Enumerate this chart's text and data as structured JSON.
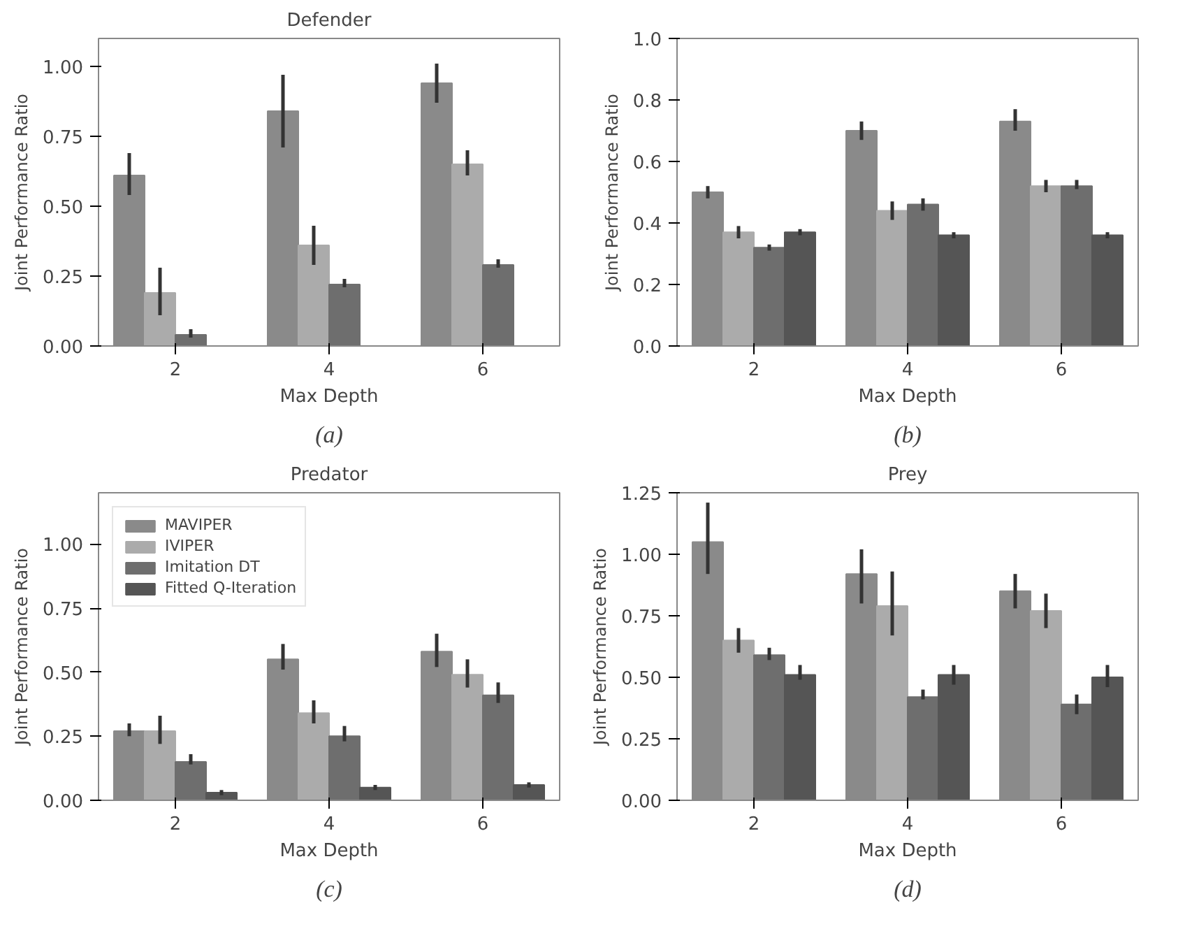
{
  "chart_data": [
    {
      "type": "bar",
      "title": "Defender",
      "xlabel": "Max Depth",
      "ylabel": "Joint Performance Ratio",
      "categories": [
        "2",
        "4",
        "6"
      ],
      "ylim": [
        0,
        1.1
      ],
      "yticks": [
        {
          "value": 0,
          "label": "0.00"
        },
        {
          "value": 0.25,
          "label": "0.25"
        },
        {
          "value": 0.5,
          "label": "0.50"
        },
        {
          "value": 0.75,
          "label": "0.75"
        },
        {
          "value": 1,
          "label": "1.00"
        }
      ],
      "grid": false,
      "legend": false,
      "annotations": [
        "(a)"
      ],
      "series": [
        {
          "color": "#8a8a8a",
          "values": [
            0.61,
            0.84,
            0.94
          ],
          "errors": [
            [
              0.54,
              0.69
            ],
            [
              0.71,
              0.97
            ],
            [
              0.87,
              1.01
            ]
          ]
        },
        {
          "color": "#ababab",
          "values": [
            0.19,
            0.36,
            0.65
          ],
          "errors": [
            [
              0.11,
              0.28
            ],
            [
              0.29,
              0.43
            ],
            [
              0.61,
              0.7
            ]
          ]
        },
        {
          "color": "#6e6e6e",
          "values": [
            0.04,
            0.22,
            0.29
          ],
          "errors": [
            [
              0.03,
              0.06
            ],
            [
              0.21,
              0.24
            ],
            [
              0.28,
              0.31
            ]
          ]
        },
        {
          "color": "#555555",
          "values": [
            null,
            null,
            null
          ]
        }
      ]
    },
    {
      "type": "bar",
      "xlabel": "Max Depth",
      "ylabel": "Joint Performance Ratio",
      "categories": [
        "2",
        "4",
        "6"
      ],
      "ylim": [
        0,
        1.0
      ],
      "yticks": [
        {
          "value": 0,
          "label": "0.0"
        },
        0.2,
        0.4,
        0.6,
        0.8,
        {
          "value": 1,
          "label": "1.0"
        }
      ],
      "grid": false,
      "legend": false,
      "annotations": [
        "(b)"
      ],
      "series": [
        {
          "color": "#8a8a8a",
          "values": [
            0.5,
            0.7,
            0.73
          ],
          "errors": [
            [
              0.48,
              0.52
            ],
            [
              0.67,
              0.73
            ],
            [
              0.7,
              0.77
            ]
          ]
        },
        {
          "color": "#ababab",
          "values": [
            0.37,
            0.44,
            0.52
          ],
          "errors": [
            [
              0.35,
              0.39
            ],
            [
              0.41,
              0.47
            ],
            [
              0.5,
              0.54
            ]
          ]
        },
        {
          "color": "#6e6e6e",
          "values": [
            0.32,
            0.46,
            0.52
          ],
          "errors": [
            [
              0.31,
              0.33
            ],
            [
              0.44,
              0.48
            ],
            [
              0.51,
              0.54
            ]
          ]
        },
        {
          "color": "#555555",
          "values": [
            0.37,
            0.36,
            0.36
          ],
          "errors": [
            [
              0.36,
              0.38
            ],
            [
              0.35,
              0.37
            ],
            [
              0.35,
              0.37
            ]
          ]
        }
      ]
    },
    {
      "type": "bar",
      "title": "Predator",
      "xlabel": "Max Depth",
      "ylabel": "Joint Performance Ratio",
      "categories": [
        "2",
        "4",
        "6"
      ],
      "ylim": [
        0,
        1.2
      ],
      "yticks": [
        {
          "value": 0,
          "label": "0.00"
        },
        {
          "value": 0.25,
          "label": "0.25"
        },
        {
          "value": 0.5,
          "label": "0.50"
        },
        {
          "value": 0.75,
          "label": "0.75"
        },
        {
          "value": 1,
          "label": "1.00"
        }
      ],
      "grid": false,
      "legend": "top left",
      "annotations": [
        "(c)"
      ],
      "series": [
        {
          "name": "MAVIPER",
          "color": "#8a8a8a",
          "values": [
            0.27,
            0.55,
            0.58
          ],
          "errors": [
            [
              0.25,
              0.3
            ],
            [
              0.51,
              0.61
            ],
            [
              0.52,
              0.65
            ]
          ]
        },
        {
          "name": "IVIPER",
          "color": "#ababab",
          "values": [
            0.27,
            0.34,
            0.49
          ],
          "errors": [
            [
              0.22,
              0.33
            ],
            [
              0.3,
              0.39
            ],
            [
              0.44,
              0.55
            ]
          ]
        },
        {
          "name": "Imitation DT",
          "color": "#6e6e6e",
          "values": [
            0.15,
            0.25,
            0.41
          ],
          "errors": [
            [
              0.14,
              0.18
            ],
            [
              0.23,
              0.29
            ],
            [
              0.38,
              0.46
            ]
          ]
        },
        {
          "name": "Fitted Q-Iteration",
          "color": "#555555",
          "values": [
            0.03,
            0.05,
            0.06
          ],
          "errors": [
            [
              0.02,
              0.04
            ],
            [
              0.04,
              0.06
            ],
            [
              0.05,
              0.07
            ]
          ]
        }
      ]
    },
    {
      "type": "bar",
      "title": "Prey",
      "xlabel": "Max Depth",
      "ylabel": "Joint Performance Ratio",
      "categories": [
        "2",
        "4",
        "6"
      ],
      "ylim": [
        0,
        1.25
      ],
      "yticks": [
        {
          "value": 0,
          "label": "0.00"
        },
        {
          "value": 0.25,
          "label": "0.25"
        },
        {
          "value": 0.5,
          "label": "0.50"
        },
        {
          "value": 0.75,
          "label": "0.75"
        },
        {
          "value": 1,
          "label": "1.00"
        },
        1.25
      ],
      "grid": false,
      "legend": false,
      "annotations": [
        "(d)"
      ],
      "series": [
        {
          "color": "#8a8a8a",
          "values": [
            1.05,
            0.92,
            0.85
          ],
          "errors": [
            [
              0.92,
              1.21
            ],
            [
              0.8,
              1.02
            ],
            [
              0.78,
              0.92
            ]
          ]
        },
        {
          "color": "#ababab",
          "values": [
            0.65,
            0.79,
            0.77
          ],
          "errors": [
            [
              0.6,
              0.7
            ],
            [
              0.67,
              0.93
            ],
            [
              0.7,
              0.84
            ]
          ]
        },
        {
          "color": "#6e6e6e",
          "values": [
            0.59,
            0.42,
            0.39
          ],
          "errors": [
            [
              0.57,
              0.62
            ],
            [
              0.41,
              0.45
            ],
            [
              0.35,
              0.43
            ]
          ]
        },
        {
          "color": "#555555",
          "values": [
            0.51,
            0.51,
            0.5
          ],
          "errors": [
            [
              0.49,
              0.55
            ],
            [
              0.47,
              0.55
            ],
            [
              0.46,
              0.55
            ]
          ]
        }
      ]
    }
  ]
}
